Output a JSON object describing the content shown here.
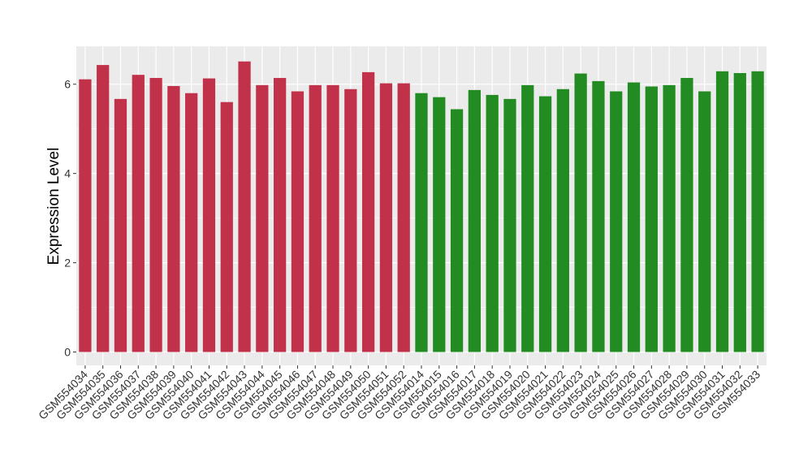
{
  "chart_data": {
    "type": "bar",
    "title": "",
    "xlabel": "",
    "ylabel": "Expression Level",
    "ylim": [
      -0.3,
      6.85
    ],
    "yticks": [
      0,
      2,
      4,
      6
    ],
    "grid": true,
    "background": "#EBEBEB",
    "colors": {
      "group1": "#C1314A",
      "group2": "#228B22"
    },
    "categories": [
      "GSM554034",
      "GSM554035",
      "GSM554036",
      "GSM554037",
      "GSM554038",
      "GSM554039",
      "GSM554040",
      "GSM554041",
      "GSM554042",
      "GSM554043",
      "GSM554044",
      "GSM554045",
      "GSM554046",
      "GSM554047",
      "GSM554048",
      "GSM554049",
      "GSM554050",
      "GSM554051",
      "GSM554052",
      "GSM554014",
      "GSM554015",
      "GSM554016",
      "GSM554017",
      "GSM554018",
      "GSM554019",
      "GSM554020",
      "GSM554021",
      "GSM554022",
      "GSM554023",
      "GSM554024",
      "GSM554025",
      "GSM554026",
      "GSM554027",
      "GSM554028",
      "GSM554029",
      "GSM554030",
      "GSM554031",
      "GSM554032",
      "GSM554033"
    ],
    "values": [
      6.11,
      6.43,
      5.67,
      6.21,
      6.14,
      5.96,
      5.8,
      6.13,
      5.6,
      6.51,
      5.98,
      6.14,
      5.84,
      5.98,
      5.98,
      5.89,
      6.27,
      6.02,
      6.02,
      5.8,
      5.71,
      5.44,
      5.87,
      5.76,
      5.67,
      5.98,
      5.73,
      5.89,
      6.24,
      6.07,
      5.84,
      6.04,
      5.95,
      5.98,
      6.14,
      5.84,
      6.29,
      6.25,
      6.29
    ],
    "groups": [
      "group1",
      "group1",
      "group1",
      "group1",
      "group1",
      "group1",
      "group1",
      "group1",
      "group1",
      "group1",
      "group1",
      "group1",
      "group1",
      "group1",
      "group1",
      "group1",
      "group1",
      "group1",
      "group1",
      "group2",
      "group2",
      "group2",
      "group2",
      "group2",
      "group2",
      "group2",
      "group2",
      "group2",
      "group2",
      "group2",
      "group2",
      "group2",
      "group2",
      "group2",
      "group2",
      "group2",
      "group2",
      "group2",
      "group2"
    ]
  }
}
